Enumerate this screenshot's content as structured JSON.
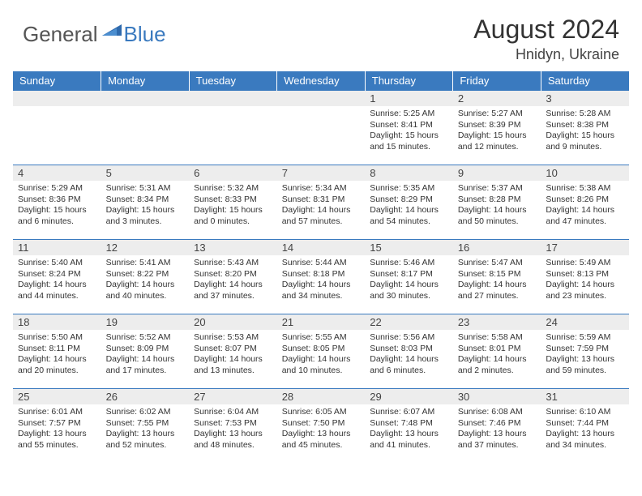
{
  "logo": {
    "general": "General",
    "blue": "Blue"
  },
  "title": "August 2024",
  "location": "Hnidyn, Ukraine",
  "colors": {
    "header_bg": "#3a7abf",
    "header_text": "#ffffff",
    "daynum_bg": "#ededed",
    "border": "#3a7abf",
    "text": "#333333"
  },
  "weekdays": [
    "Sunday",
    "Monday",
    "Tuesday",
    "Wednesday",
    "Thursday",
    "Friday",
    "Saturday"
  ],
  "weeks": [
    [
      {
        "n": "",
        "sr": "",
        "ss": "",
        "dl": ""
      },
      {
        "n": "",
        "sr": "",
        "ss": "",
        "dl": ""
      },
      {
        "n": "",
        "sr": "",
        "ss": "",
        "dl": ""
      },
      {
        "n": "",
        "sr": "",
        "ss": "",
        "dl": ""
      },
      {
        "n": "1",
        "sr": "5:25 AM",
        "ss": "8:41 PM",
        "dl": "15 hours and 15 minutes."
      },
      {
        "n": "2",
        "sr": "5:27 AM",
        "ss": "8:39 PM",
        "dl": "15 hours and 12 minutes."
      },
      {
        "n": "3",
        "sr": "5:28 AM",
        "ss": "8:38 PM",
        "dl": "15 hours and 9 minutes."
      }
    ],
    [
      {
        "n": "4",
        "sr": "5:29 AM",
        "ss": "8:36 PM",
        "dl": "15 hours and 6 minutes."
      },
      {
        "n": "5",
        "sr": "5:31 AM",
        "ss": "8:34 PM",
        "dl": "15 hours and 3 minutes."
      },
      {
        "n": "6",
        "sr": "5:32 AM",
        "ss": "8:33 PM",
        "dl": "15 hours and 0 minutes."
      },
      {
        "n": "7",
        "sr": "5:34 AM",
        "ss": "8:31 PM",
        "dl": "14 hours and 57 minutes."
      },
      {
        "n": "8",
        "sr": "5:35 AM",
        "ss": "8:29 PM",
        "dl": "14 hours and 54 minutes."
      },
      {
        "n": "9",
        "sr": "5:37 AM",
        "ss": "8:28 PM",
        "dl": "14 hours and 50 minutes."
      },
      {
        "n": "10",
        "sr": "5:38 AM",
        "ss": "8:26 PM",
        "dl": "14 hours and 47 minutes."
      }
    ],
    [
      {
        "n": "11",
        "sr": "5:40 AM",
        "ss": "8:24 PM",
        "dl": "14 hours and 44 minutes."
      },
      {
        "n": "12",
        "sr": "5:41 AM",
        "ss": "8:22 PM",
        "dl": "14 hours and 40 minutes."
      },
      {
        "n": "13",
        "sr": "5:43 AM",
        "ss": "8:20 PM",
        "dl": "14 hours and 37 minutes."
      },
      {
        "n": "14",
        "sr": "5:44 AM",
        "ss": "8:18 PM",
        "dl": "14 hours and 34 minutes."
      },
      {
        "n": "15",
        "sr": "5:46 AM",
        "ss": "8:17 PM",
        "dl": "14 hours and 30 minutes."
      },
      {
        "n": "16",
        "sr": "5:47 AM",
        "ss": "8:15 PM",
        "dl": "14 hours and 27 minutes."
      },
      {
        "n": "17",
        "sr": "5:49 AM",
        "ss": "8:13 PM",
        "dl": "14 hours and 23 minutes."
      }
    ],
    [
      {
        "n": "18",
        "sr": "5:50 AM",
        "ss": "8:11 PM",
        "dl": "14 hours and 20 minutes."
      },
      {
        "n": "19",
        "sr": "5:52 AM",
        "ss": "8:09 PM",
        "dl": "14 hours and 17 minutes."
      },
      {
        "n": "20",
        "sr": "5:53 AM",
        "ss": "8:07 PM",
        "dl": "14 hours and 13 minutes."
      },
      {
        "n": "21",
        "sr": "5:55 AM",
        "ss": "8:05 PM",
        "dl": "14 hours and 10 minutes."
      },
      {
        "n": "22",
        "sr": "5:56 AM",
        "ss": "8:03 PM",
        "dl": "14 hours and 6 minutes."
      },
      {
        "n": "23",
        "sr": "5:58 AM",
        "ss": "8:01 PM",
        "dl": "14 hours and 2 minutes."
      },
      {
        "n": "24",
        "sr": "5:59 AM",
        "ss": "7:59 PM",
        "dl": "13 hours and 59 minutes."
      }
    ],
    [
      {
        "n": "25",
        "sr": "6:01 AM",
        "ss": "7:57 PM",
        "dl": "13 hours and 55 minutes."
      },
      {
        "n": "26",
        "sr": "6:02 AM",
        "ss": "7:55 PM",
        "dl": "13 hours and 52 minutes."
      },
      {
        "n": "27",
        "sr": "6:04 AM",
        "ss": "7:53 PM",
        "dl": "13 hours and 48 minutes."
      },
      {
        "n": "28",
        "sr": "6:05 AM",
        "ss": "7:50 PM",
        "dl": "13 hours and 45 minutes."
      },
      {
        "n": "29",
        "sr": "6:07 AM",
        "ss": "7:48 PM",
        "dl": "13 hours and 41 minutes."
      },
      {
        "n": "30",
        "sr": "6:08 AM",
        "ss": "7:46 PM",
        "dl": "13 hours and 37 minutes."
      },
      {
        "n": "31",
        "sr": "6:10 AM",
        "ss": "7:44 PM",
        "dl": "13 hours and 34 minutes."
      }
    ]
  ],
  "labels": {
    "sunrise": "Sunrise: ",
    "sunset": "Sunset: ",
    "daylight": "Daylight: "
  }
}
